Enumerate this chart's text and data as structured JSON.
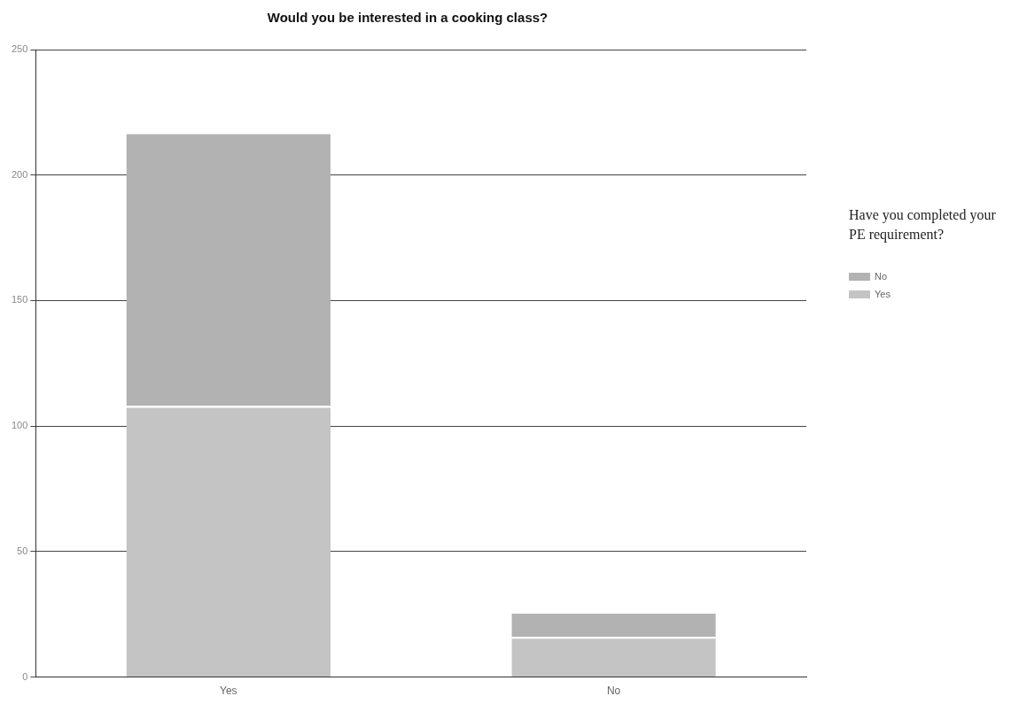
{
  "chart_data": {
    "type": "bar",
    "title": "Would you be interested in a cooking class?",
    "categories": [
      "Yes",
      "No"
    ],
    "stacked": true,
    "series": [
      {
        "name": "Yes",
        "color": "#c4c4c4",
        "values": [
          108,
          16
        ]
      },
      {
        "name": "No",
        "color": "#b2b2b2",
        "values": [
          109,
          10
        ]
      }
    ],
    "ylim": [
      0,
      250
    ],
    "yticks": [
      0,
      50,
      100,
      150,
      200,
      250
    ],
    "grid": "y",
    "legend": "right",
    "legend_title": "Have you completed your PE requirement?"
  }
}
